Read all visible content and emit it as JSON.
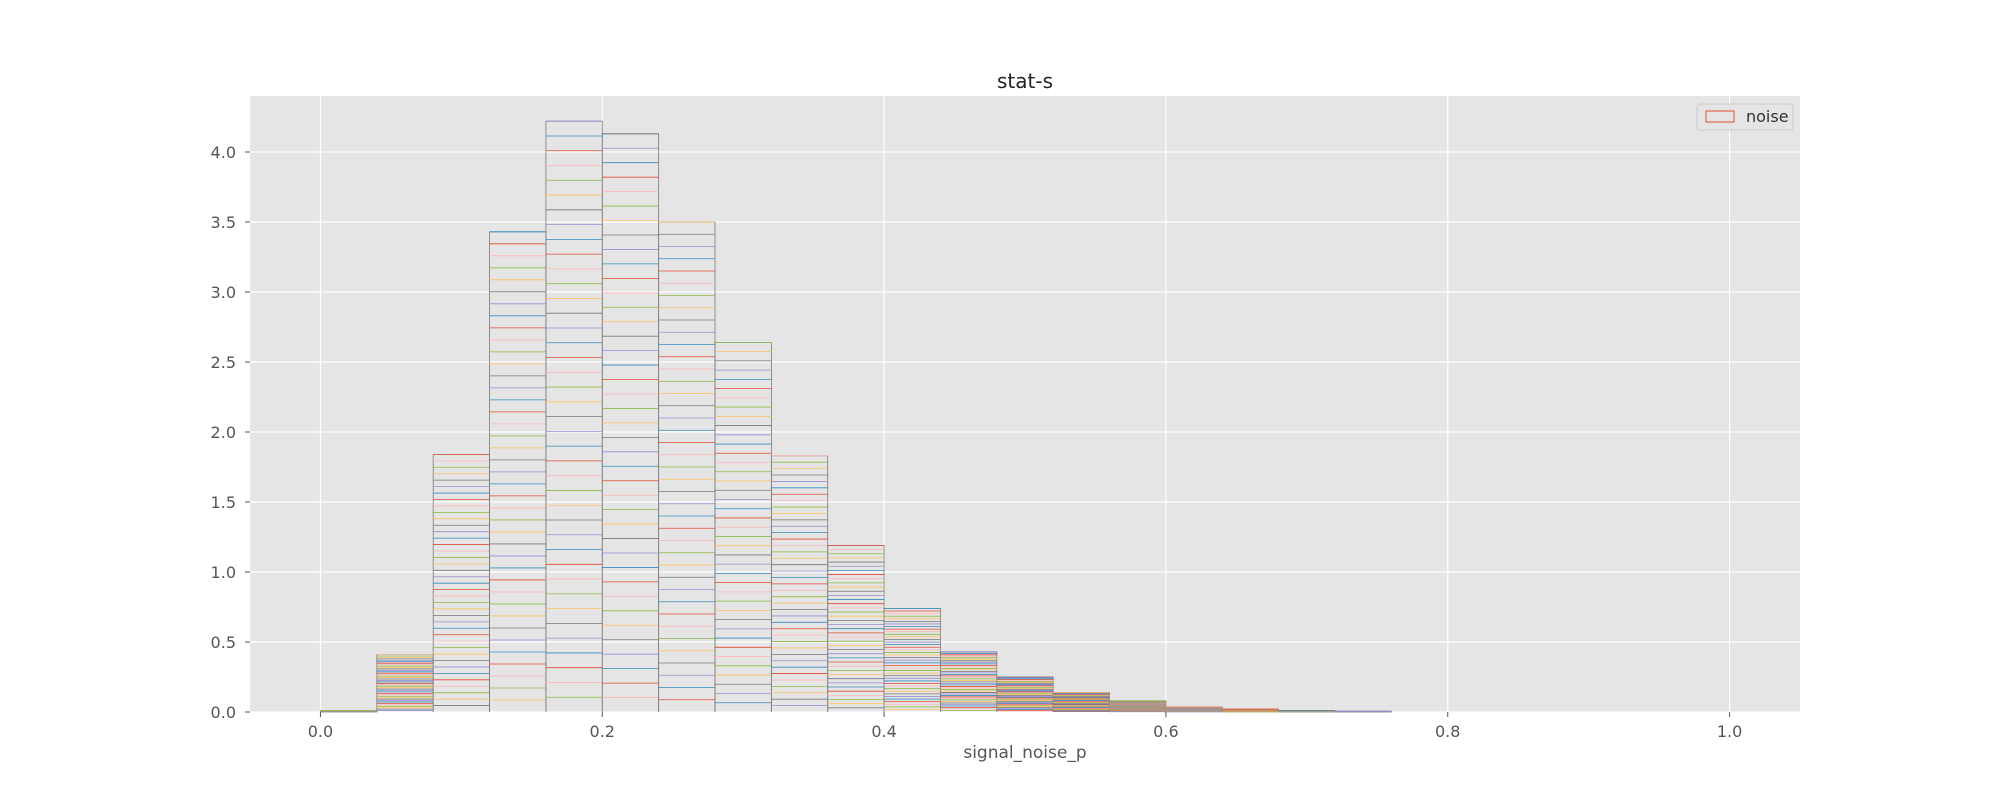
{
  "chart_data": {
    "type": "bar",
    "title": "stat-s",
    "xlabel": "signal_noise_p",
    "ylabel": "",
    "xlim": [
      -0.05,
      1.05
    ],
    "ylim": [
      0,
      4.4
    ],
    "xticks": [
      "0.0",
      "0.2",
      "0.4",
      "0.6",
      "0.8",
      "1.0"
    ],
    "yticks": [
      "0.0",
      "0.5",
      "1.0",
      "1.5",
      "2.0",
      "2.5",
      "3.0",
      "3.5",
      "4.0"
    ],
    "grid": true,
    "legend": {
      "position": "top-right",
      "entries": [
        "noise"
      ]
    },
    "histtype": "step",
    "stacked": true,
    "layer_count": 40,
    "layer_colors": [
      "#e24a33",
      "#348abd",
      "#988ed5",
      "#777777",
      "#fbc15e",
      "#8eba42",
      "#ffb5b8"
    ],
    "bins": [
      {
        "x0": 0.0,
        "x1": 0.04,
        "top": 0.01
      },
      {
        "x0": 0.04,
        "x1": 0.08,
        "top": 0.41
      },
      {
        "x0": 0.08,
        "x1": 0.12,
        "top": 1.84
      },
      {
        "x0": 0.12,
        "x1": 0.16,
        "top": 3.43
      },
      {
        "x0": 0.16,
        "x1": 0.2,
        "top": 4.22
      },
      {
        "x0": 0.2,
        "x1": 0.24,
        "top": 4.13
      },
      {
        "x0": 0.24,
        "x1": 0.28,
        "top": 3.5
      },
      {
        "x0": 0.28,
        "x1": 0.32,
        "top": 2.64
      },
      {
        "x0": 0.32,
        "x1": 0.36,
        "top": 1.83
      },
      {
        "x0": 0.36,
        "x1": 0.4,
        "top": 1.19
      },
      {
        "x0": 0.4,
        "x1": 0.44,
        "top": 0.74
      },
      {
        "x0": 0.44,
        "x1": 0.48,
        "top": 0.43
      },
      {
        "x0": 0.48,
        "x1": 0.52,
        "top": 0.25
      },
      {
        "x0": 0.52,
        "x1": 0.56,
        "top": 0.14
      },
      {
        "x0": 0.56,
        "x1": 0.6,
        "top": 0.08
      },
      {
        "x0": 0.6,
        "x1": 0.64,
        "top": 0.04
      },
      {
        "x0": 0.64,
        "x1": 0.68,
        "top": 0.02
      },
      {
        "x0": 0.68,
        "x1": 0.72,
        "top": 0.01
      },
      {
        "x0": 0.72,
        "x1": 0.76,
        "top": 0.005
      }
    ]
  },
  "colors": {
    "plot_background": "#e5e5e5",
    "grid": "#ffffff",
    "legend_patch": "#e24a33"
  }
}
